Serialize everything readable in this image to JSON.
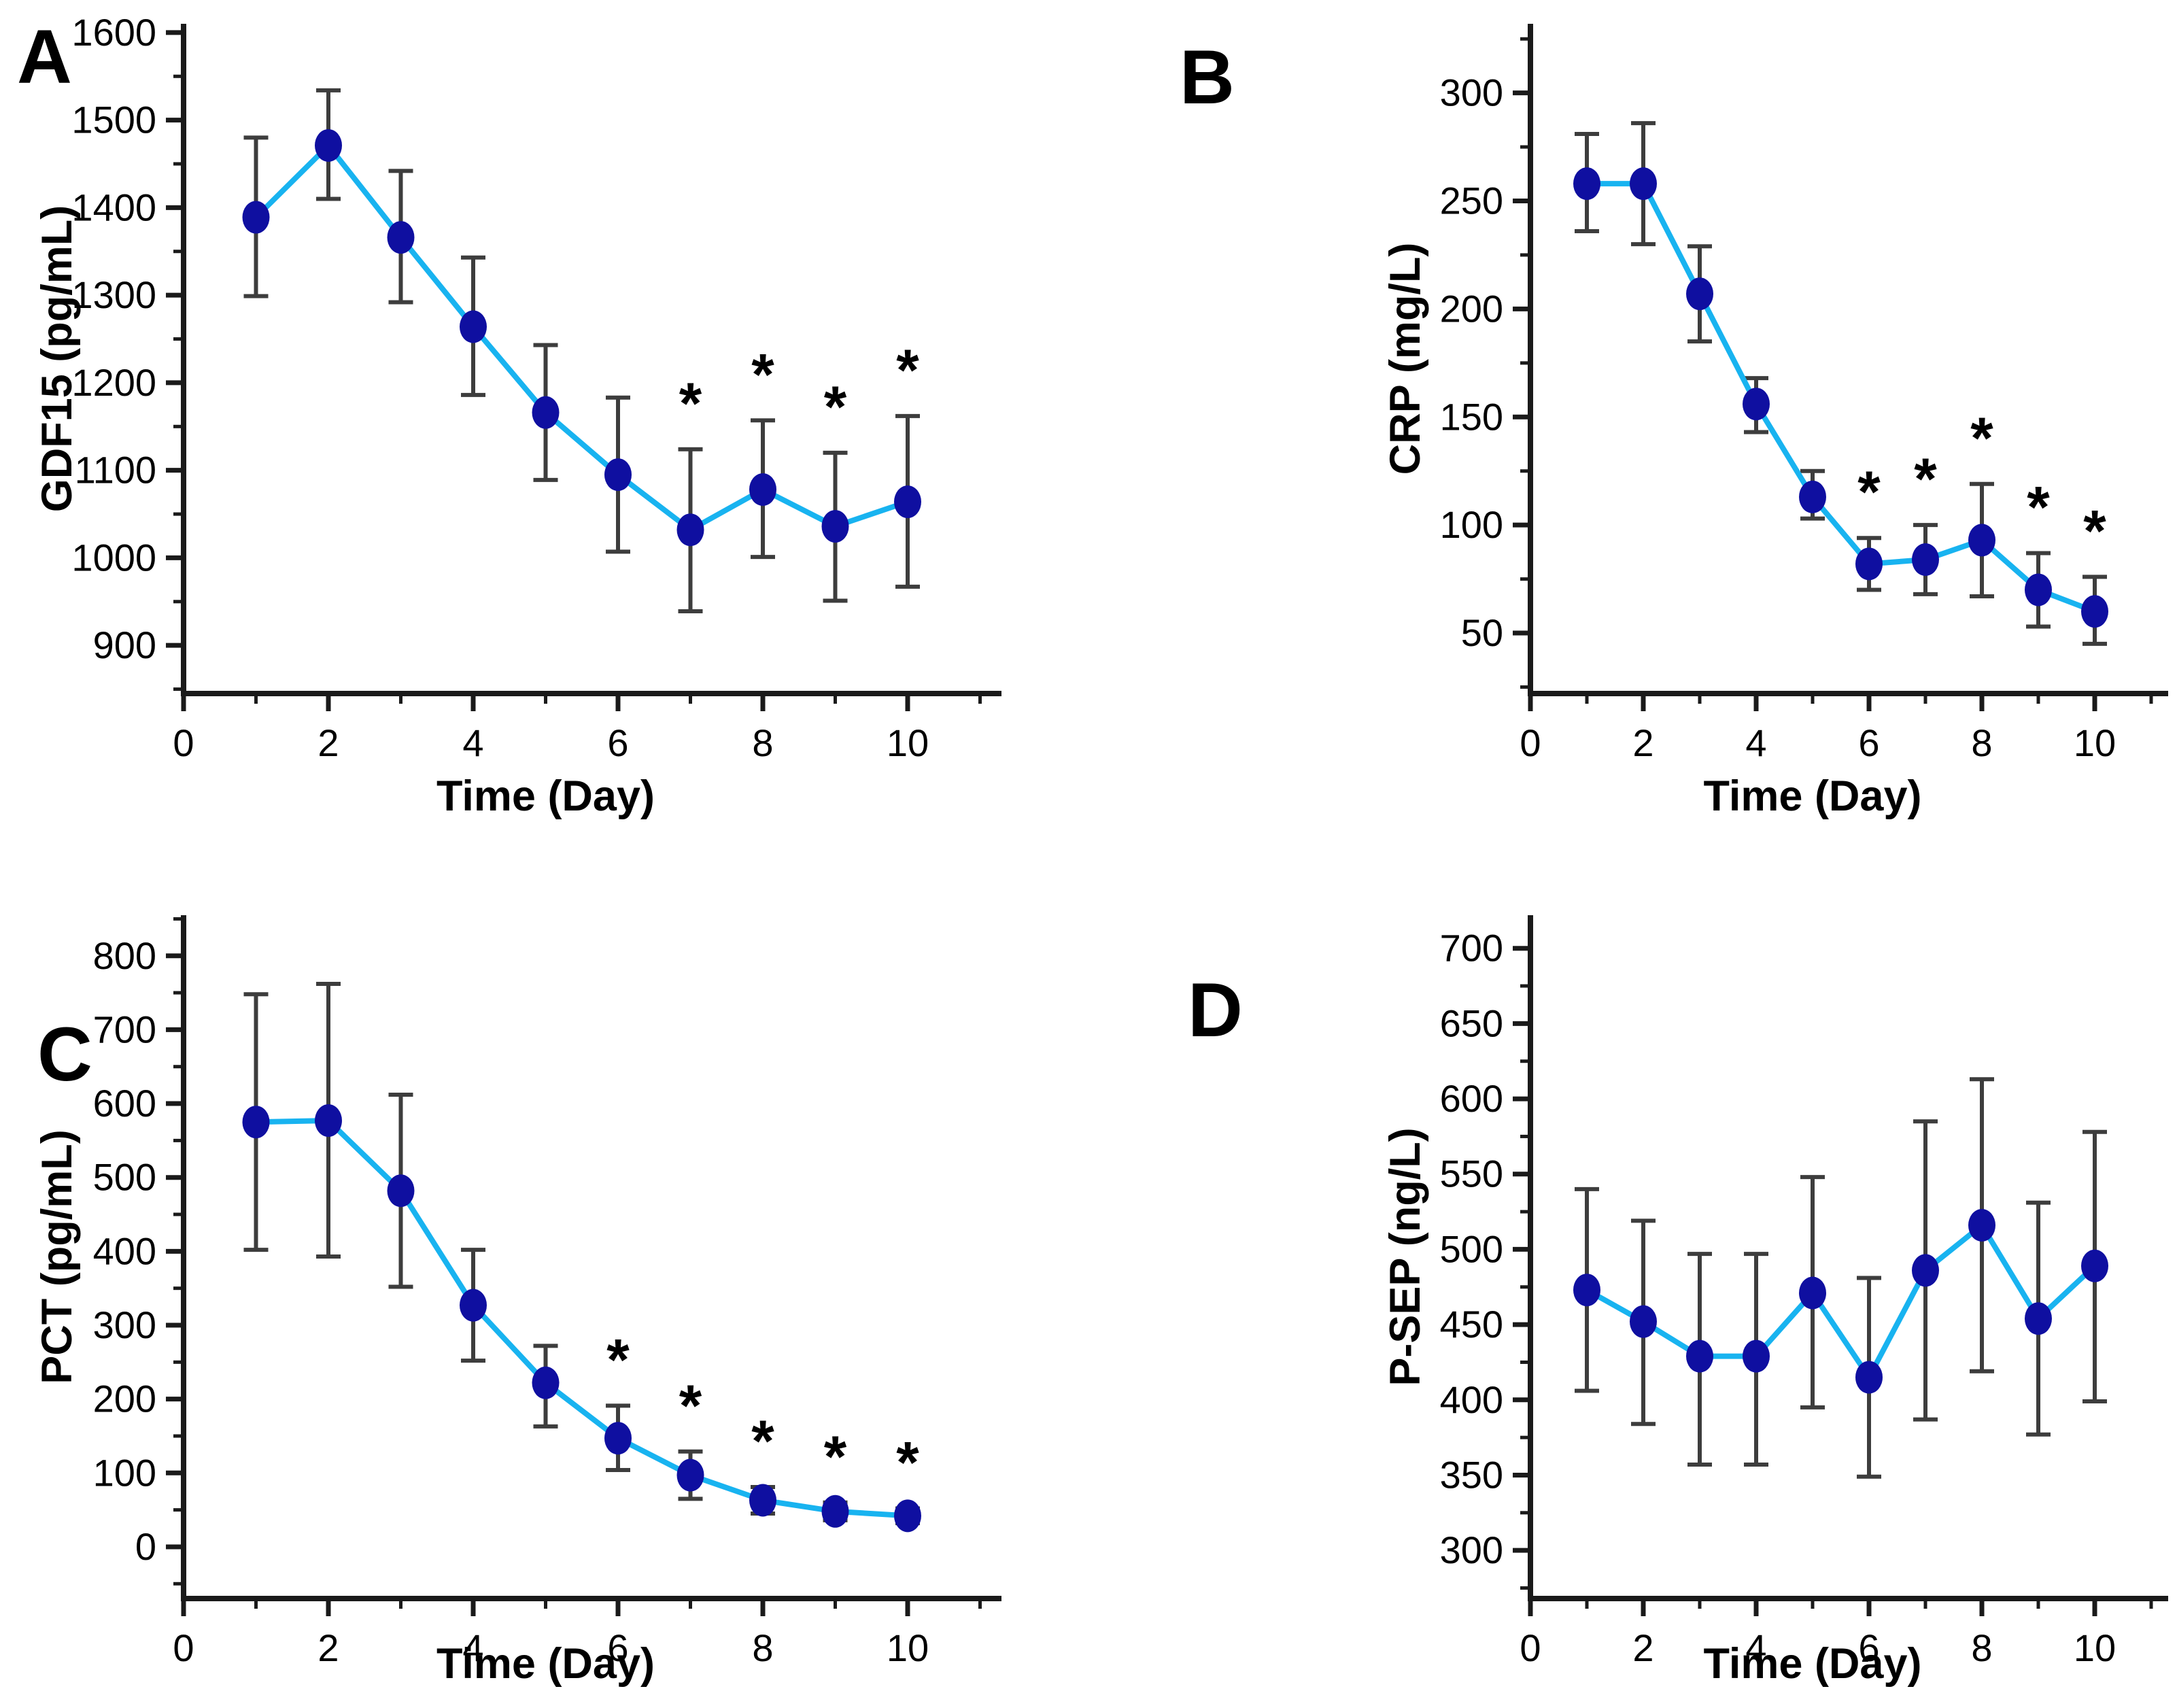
{
  "figure": {
    "panels": [
      "A",
      "B",
      "C",
      "D"
    ],
    "xlabel": "Time (Day)",
    "significance_symbol": "*"
  },
  "style": {
    "background": "#FFFFFF",
    "line_color": "#18B3F0",
    "marker_color": "#0F0FA0",
    "error_bar_color": "#3D3D3D",
    "axis_color": "#1A1A1A",
    "text_color": "#000000"
  },
  "chart_data": [
    {
      "panel": "A",
      "type": "line",
      "title": "",
      "xlabel": "Time (Day)",
      "ylabel": "GDF15 (pg/mL)",
      "x": [
        1,
        2,
        3,
        4,
        5,
        6,
        7,
        8,
        9,
        10
      ],
      "values": [
        1389,
        1471,
        1366,
        1264,
        1166,
        1095,
        1032,
        1078,
        1036,
        1064
      ],
      "err_low": [
        1299,
        1410,
        1292,
        1186,
        1089,
        1007,
        939,
        1001,
        951,
        967
      ],
      "err_high": [
        1480,
        1534,
        1442,
        1343,
        1243,
        1183,
        1124,
        1157,
        1120,
        1162
      ],
      "significant_x": [
        7,
        8,
        9,
        10
      ],
      "ylim": [
        845,
        1610
      ],
      "yticks": [
        900,
        1000,
        1100,
        1200,
        1300,
        1400,
        1500,
        1600
      ],
      "y_minor_step": 50,
      "xlim": [
        0,
        11.3
      ],
      "xticks": [
        0,
        2,
        4,
        6,
        8,
        10
      ],
      "x_minor_ticks": [
        1,
        3,
        5,
        7,
        9,
        11
      ],
      "grid": false,
      "legend": "none"
    },
    {
      "panel": "B",
      "type": "line",
      "title": "",
      "xlabel": "Time (Day)",
      "ylabel": "CRP (mg/L)",
      "x": [
        1,
        2,
        3,
        4,
        5,
        6,
        7,
        8,
        9,
        10
      ],
      "values": [
        258,
        258,
        207,
        156,
        113,
        82,
        84,
        93,
        70,
        60
      ],
      "err_low": [
        236,
        230,
        185,
        143,
        103,
        70,
        68,
        67,
        53,
        45
      ],
      "err_high": [
        281,
        286,
        229,
        168,
        125,
        94,
        100,
        119,
        87,
        76
      ],
      "significant_x": [
        6,
        7,
        8,
        9,
        10
      ],
      "ylim": [
        22,
        332
      ],
      "yticks": [
        50,
        100,
        150,
        200,
        250,
        300
      ],
      "y_minor_step": 25,
      "xlim": [
        0,
        11.3
      ],
      "xticks": [
        0,
        2,
        4,
        6,
        8,
        10
      ],
      "x_minor_ticks": [
        1,
        3,
        5,
        7,
        9,
        11
      ],
      "grid": false,
      "legend": "none"
    },
    {
      "panel": "C",
      "type": "line",
      "title": "",
      "xlabel": "Time (Day)",
      "ylabel": "PCT (pg/mL)",
      "x": [
        1,
        2,
        3,
        4,
        5,
        6,
        7,
        8,
        9,
        10
      ],
      "values": [
        575,
        577,
        482,
        327,
        222,
        147,
        97,
        63,
        48,
        42
      ],
      "err_low": [
        402,
        393,
        352,
        252,
        163,
        104,
        65,
        45,
        36,
        32
      ],
      "err_high": [
        748,
        762,
        612,
        402,
        272,
        191,
        129,
        81,
        60,
        52
      ],
      "significant_x": [
        6,
        7,
        8,
        9,
        10
      ],
      "ylim": [
        -70,
        855
      ],
      "yticks": [
        0,
        100,
        200,
        300,
        400,
        500,
        600,
        700,
        800
      ],
      "y_minor_step": 50,
      "xlim": [
        0,
        11.3
      ],
      "xticks": [
        0,
        2,
        4,
        6,
        8,
        10
      ],
      "x_minor_ticks": [
        1,
        3,
        5,
        7,
        9,
        11
      ],
      "grid": false,
      "legend": "none"
    },
    {
      "panel": "D",
      "type": "line",
      "title": "",
      "xlabel": "Time (Day)",
      "ylabel": "P-SEP (ng/L)",
      "x": [
        1,
        2,
        3,
        4,
        5,
        6,
        7,
        8,
        9,
        10
      ],
      "values": [
        473,
        452,
        429,
        429,
        471,
        415,
        486,
        516,
        454,
        489
      ],
      "err_low": [
        406,
        384,
        357,
        357,
        395,
        349,
        387,
        419,
        377,
        399
      ],
      "err_high": [
        540,
        519,
        497,
        497,
        548,
        481,
        585,
        613,
        531,
        578
      ],
      "significant_x": [],
      "ylim": [
        268,
        722
      ],
      "yticks": [
        300,
        350,
        400,
        450,
        500,
        550,
        600,
        650,
        700
      ],
      "y_minor_step": 25,
      "xlim": [
        0,
        11.3
      ],
      "xticks": [
        0,
        2,
        4,
        6,
        8,
        10
      ],
      "x_minor_ticks": [
        1,
        3,
        5,
        7,
        9,
        11
      ],
      "grid": false,
      "legend": "none"
    }
  ]
}
